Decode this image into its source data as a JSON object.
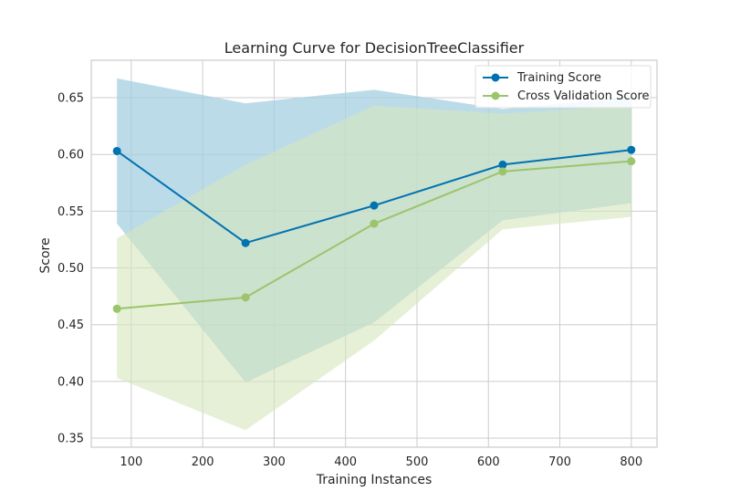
{
  "chart_data": {
    "type": "line",
    "title": "Learning Curve for DecisionTreeClassifier",
    "xlabel": "Training Instances",
    "ylabel": "Score",
    "xlim": [
      44,
      836
    ],
    "ylim": [
      0.342,
      0.683
    ],
    "xticks": [
      100,
      200,
      300,
      400,
      500,
      600,
      700,
      800
    ],
    "yticks": [
      0.35,
      0.4,
      0.45,
      0.5,
      0.55,
      0.6,
      0.65
    ],
    "ytick_labels": [
      "0.35",
      "0.40",
      "0.45",
      "0.50",
      "0.55",
      "0.60",
      "0.65"
    ],
    "grid": true,
    "legend_position": "top-right",
    "x": [
      80,
      260,
      440,
      620,
      800
    ],
    "series": [
      {
        "name": "Training Score",
        "color": "#0072b2",
        "band_color": "#a6cfe0",
        "values": [
          0.603,
          0.522,
          0.555,
          0.591,
          0.604
        ],
        "upper": [
          0.667,
          0.645,
          0.657,
          0.64,
          0.651
        ],
        "lower": [
          0.539,
          0.399,
          0.452,
          0.542,
          0.557
        ]
      },
      {
        "name": "Cross Validation Score",
        "color": "#9cc46c",
        "band_color": "#d6e6bd",
        "values": [
          0.464,
          0.474,
          0.539,
          0.585,
          0.594
        ],
        "upper": [
          0.526,
          0.591,
          0.643,
          0.636,
          0.643
        ],
        "lower": [
          0.403,
          0.357,
          0.436,
          0.534,
          0.545
        ]
      }
    ]
  }
}
